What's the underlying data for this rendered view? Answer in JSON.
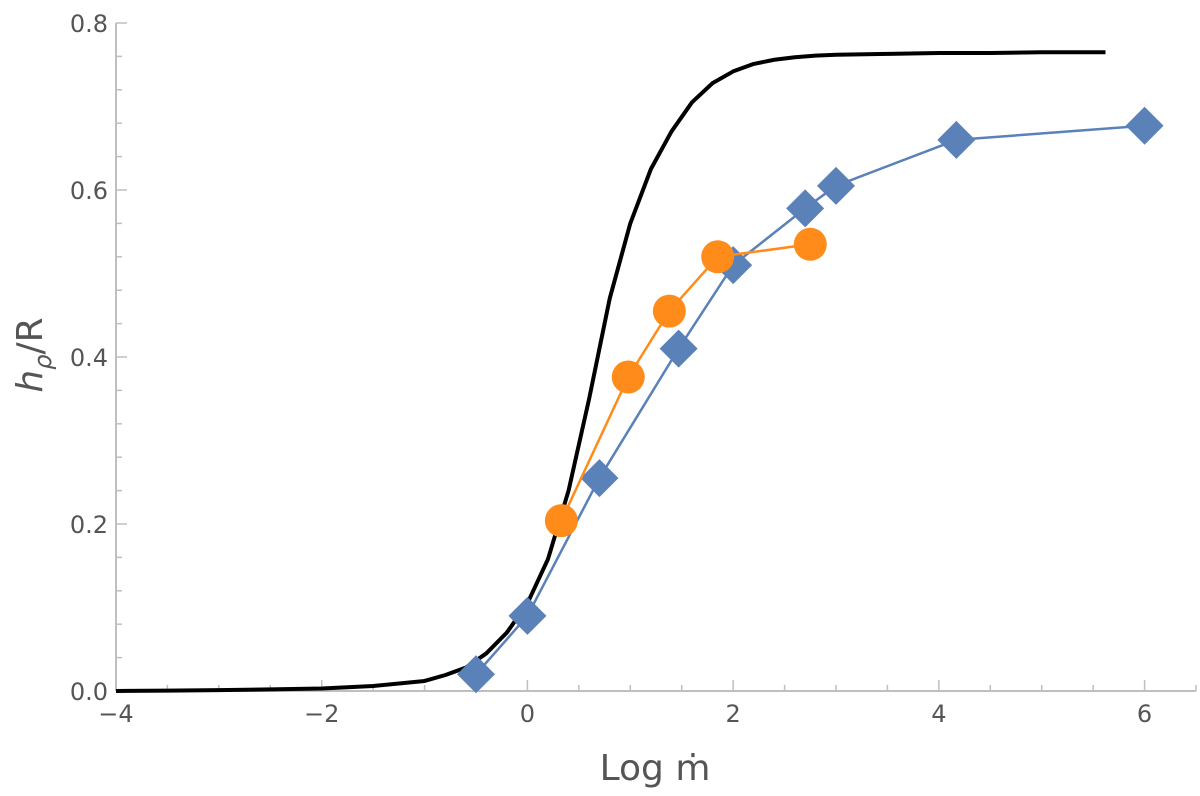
{
  "chart_data": {
    "type": "line",
    "xlabel": "Log ṁ",
    "ylabel_main": "h",
    "ylabel_sub": "ρ",
    "ylabel_suffix": "/R",
    "xlim": [
      -4,
      6.5
    ],
    "ylim": [
      0,
      0.8
    ],
    "x_ticks": [
      -4,
      -2,
      0,
      2,
      4,
      6
    ],
    "x_tick_labels": [
      "−4",
      "−2",
      "0",
      "2",
      "4",
      "6"
    ],
    "y_ticks": [
      0,
      0.2,
      0.4,
      0.6,
      0.8
    ],
    "y_tick_labels": [
      "0.0",
      "0.2",
      "0.4",
      "0.6",
      "0.8"
    ],
    "grid": false,
    "series": [
      {
        "marker": "none",
        "color": "#000000",
        "x": [
          -4.0,
          -3.5,
          -3.0,
          -2.5,
          -2.0,
          -1.5,
          -1.0,
          -0.8,
          -0.6,
          -0.4,
          -0.2,
          0.0,
          0.2,
          0.4,
          0.6,
          0.8,
          1.0,
          1.2,
          1.4,
          1.6,
          1.8,
          2.0,
          2.2,
          2.4,
          2.6,
          2.8,
          3.0,
          3.5,
          4.0,
          4.5,
          5.0,
          5.62
        ],
        "y": [
          0.0,
          0.0005,
          0.001,
          0.002,
          0.003,
          0.006,
          0.012,
          0.019,
          0.028,
          0.045,
          0.07,
          0.105,
          0.158,
          0.24,
          0.35,
          0.47,
          0.56,
          0.625,
          0.67,
          0.705,
          0.728,
          0.742,
          0.751,
          0.756,
          0.759,
          0.761,
          0.762,
          0.763,
          0.764,
          0.764,
          0.765,
          0.765
        ]
      },
      {
        "marker": "diamond",
        "color": "#5b81b9",
        "x": [
          -0.5,
          0.0,
          0.7,
          1.47,
          2.0,
          2.7,
          3.0,
          4.17,
          6.0
        ],
        "y": [
          0.02,
          0.09,
          0.255,
          0.41,
          0.51,
          0.578,
          0.605,
          0.66,
          0.677
        ]
      },
      {
        "marker": "circle",
        "color": "#ff8c1a",
        "x": [
          0.33,
          0.98,
          1.38,
          1.85,
          2.75
        ],
        "y": [
          0.204,
          0.376,
          0.455,
          0.52,
          0.535
        ]
      }
    ]
  }
}
